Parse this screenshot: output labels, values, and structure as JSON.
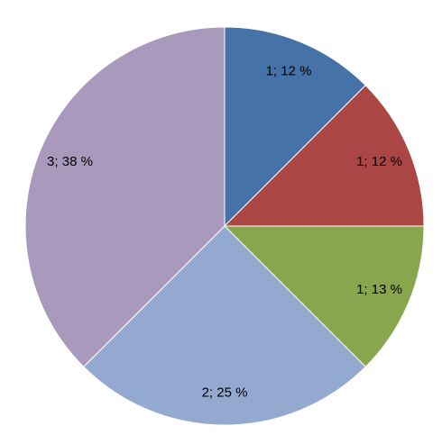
{
  "chart_data": {
    "type": "pie",
    "values": [
      1,
      1,
      1,
      2,
      3
    ],
    "value_labels": [
      "1; 12 %",
      "1; 12 %",
      "1; 13 %",
      "2; 25 %",
      "3; 38 %"
    ],
    "colors": [
      "#4572a7",
      "#aa4643",
      "#89a54e",
      "#93a9d0",
      "#a899bd"
    ]
  }
}
